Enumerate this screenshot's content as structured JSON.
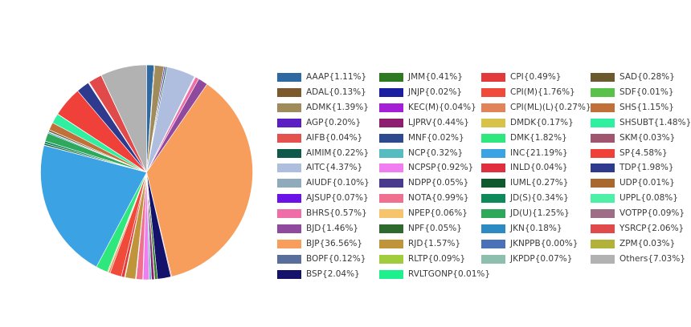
{
  "chart_data": {
    "type": "pie",
    "start_angle_deg": 0,
    "direction": "clockwise",
    "legend_columns": [
      [
        {
          "label": "AAAP{1.11%}",
          "name": "AAAP",
          "value": 1.11,
          "color": "#2e6aa1"
        },
        {
          "label": "ADAL{0.13%}",
          "name": "ADAL",
          "value": 0.13,
          "color": "#7c5a2e"
        },
        {
          "label": "ADMK{1.39%}",
          "name": "ADMK",
          "value": 1.39,
          "color": "#a08c5a"
        },
        {
          "label": "AGP{0.20%}",
          "name": "AGP",
          "value": 0.2,
          "color": "#5a1fc2"
        },
        {
          "label": "AIFB{0.04%}",
          "name": "AIFB",
          "value": 0.04,
          "color": "#e4524f"
        },
        {
          "label": "AIMIM{0.22%}",
          "name": "AIMIM",
          "value": 0.22,
          "color": "#0d5a4a"
        },
        {
          "label": "AITC{4.37%}",
          "name": "AITC",
          "value": 4.37,
          "color": "#afbede"
        },
        {
          "label": "AIUDF{0.10%}",
          "name": "AIUDF",
          "value": 0.1,
          "color": "#8eaabb"
        },
        {
          "label": "AJSUP{0.07%}",
          "name": "AJSUP",
          "value": 0.07,
          "color": "#6a12e8"
        },
        {
          "label": "BHRS{0.57%}",
          "name": "BHRS",
          "value": 0.57,
          "color": "#f06ea7"
        },
        {
          "label": "BJD{1.46%}",
          "name": "BJD",
          "value": 1.46,
          "color": "#8f4a9e"
        },
        {
          "label": "BJP{36.56%}",
          "name": "BJP",
          "value": 36.56,
          "color": "#f89e5d"
        },
        {
          "label": "BOPF{0.12%}",
          "name": "BOPF",
          "value": 0.12,
          "color": "#5a6e9c"
        },
        {
          "label": "BSP{2.04%}",
          "name": "BSP",
          "value": 2.04,
          "color": "#14126b"
        }
      ],
      [
        {
          "label": "JMM{0.41%}",
          "name": "JMM",
          "value": 0.41,
          "color": "#2e7a23"
        },
        {
          "label": "JNJP{0.02%}",
          "name": "JNJP",
          "value": 0.02,
          "color": "#1a1ea0"
        },
        {
          "label": "KEC(M){0.04%}",
          "name": "KEC(M)",
          "value": 0.04,
          "color": "#a51fd6"
        },
        {
          "label": "LJPRV{0.44%}",
          "name": "LJPRV",
          "value": 0.44,
          "color": "#8e1e6e"
        },
        {
          "label": "MNF{0.02%}",
          "name": "MNF",
          "value": 0.02,
          "color": "#2e4a8e"
        },
        {
          "label": "NCP{0.32%}",
          "name": "NCP",
          "value": 0.32,
          "color": "#56bcbf"
        },
        {
          "label": "NCPSP{0.92%}",
          "name": "NCPSP",
          "value": 0.92,
          "color": "#f07ef0"
        },
        {
          "label": "NDPP{0.05%}",
          "name": "NDPP",
          "value": 0.05,
          "color": "#4a3a8e"
        },
        {
          "label": "NOTA{0.99%}",
          "name": "NOTA",
          "value": 0.99,
          "color": "#f07090"
        },
        {
          "label": "NPEP{0.06%}",
          "name": "NPEP",
          "value": 0.06,
          "color": "#f7c46e"
        },
        {
          "label": "NPF{0.05%}",
          "name": "NPF",
          "value": 0.05,
          "color": "#2e6a2e"
        },
        {
          "label": "RJD{1.57%}",
          "name": "RJD",
          "value": 1.57,
          "color": "#c0943a"
        },
        {
          "label": "RLTP{0.09%}",
          "name": "RLTP",
          "value": 0.09,
          "color": "#a0cc3e"
        },
        {
          "label": "RVLTGONP{0.01%}",
          "name": "RVLTGONP",
          "value": 0.01,
          "color": "#1ef08e"
        }
      ],
      [
        {
          "label": "CPI{0.49%}",
          "name": "CPI",
          "value": 0.49,
          "color": "#e23a3a"
        },
        {
          "label": "CPI(M){1.76%}",
          "name": "CPI(M)",
          "value": 1.76,
          "color": "#f04a3a"
        },
        {
          "label": "CPI(ML)(L){0.27%}",
          "name": "CPI(ML)(L)",
          "value": 0.27,
          "color": "#e2845a"
        },
        {
          "label": "DMDK{0.17%}",
          "name": "DMDK",
          "value": 0.17,
          "color": "#d8c34a"
        },
        {
          "label": "DMK{1.82%}",
          "name": "DMK",
          "value": 1.82,
          "color": "#2ee87e"
        },
        {
          "label": "INC{21.19%}",
          "name": "INC",
          "value": 21.19,
          "color": "#3ba3e3"
        },
        {
          "label": "INLD{0.04%}",
          "name": "INLD",
          "value": 0.04,
          "color": "#e12e3e"
        },
        {
          "label": "IUML{0.27%}",
          "name": "IUML",
          "value": 0.27,
          "color": "#0e5a2e"
        },
        {
          "label": "JD(S){0.34%}",
          "name": "JD(S)",
          "value": 0.34,
          "color": "#0e8a5a"
        },
        {
          "label": "JD(U){1.25%}",
          "name": "JD(U)",
          "value": 1.25,
          "color": "#2ea85a"
        },
        {
          "label": "JKN{0.18%}",
          "name": "JKN",
          "value": 0.18,
          "color": "#2e8ac2"
        },
        {
          "label": "JKNPPB{0.00%}",
          "name": "JKNPPB",
          "value": 0.0,
          "color": "#4a72b8"
        },
        {
          "label": "JKPDP{0.07%}",
          "name": "JKPDP",
          "value": 0.07,
          "color": "#8ebeae"
        }
      ],
      [
        {
          "label": "SAD{0.28%}",
          "name": "SAD",
          "value": 0.28,
          "color": "#6a5a2e"
        },
        {
          "label": "SDF{0.01%}",
          "name": "SDF",
          "value": 0.01,
          "color": "#5ac24a"
        },
        {
          "label": "SHS{1.15%}",
          "name": "SHS",
          "value": 1.15,
          "color": "#c2703a"
        },
        {
          "label": "SHSUBT{1.48%}",
          "name": "SHSUBT",
          "value": 1.48,
          "color": "#2ef0a0"
        },
        {
          "label": "SKM{0.03%}",
          "name": "SKM",
          "value": 0.03,
          "color": "#a0566e"
        },
        {
          "label": "SP{4.58%}",
          "name": "SP",
          "value": 4.58,
          "color": "#f0403a"
        },
        {
          "label": "TDP{1.98%}",
          "name": "TDP",
          "value": 1.98,
          "color": "#2e3a8e"
        },
        {
          "label": "UDP{0.01%}",
          "name": "UDP",
          "value": 0.01,
          "color": "#a8682e"
        },
        {
          "label": "UPPL{0.08%}",
          "name": "UPPL",
          "value": 0.08,
          "color": "#4ef0a8"
        },
        {
          "label": "VOTPP{0.09%}",
          "name": "VOTPP",
          "value": 0.09,
          "color": "#9e6e86"
        },
        {
          "label": "YSRCP{2.06%}",
          "name": "YSRCP",
          "value": 2.06,
          "color": "#e04a4a"
        },
        {
          "label": "ZPM{0.03%}",
          "name": "ZPM",
          "value": 0.03,
          "color": "#b2b23a"
        },
        {
          "label": "Others{7.03%}",
          "name": "Others",
          "value": 7.03,
          "color": "#b2b2b2"
        }
      ]
    ],
    "legend_placement": "right"
  }
}
